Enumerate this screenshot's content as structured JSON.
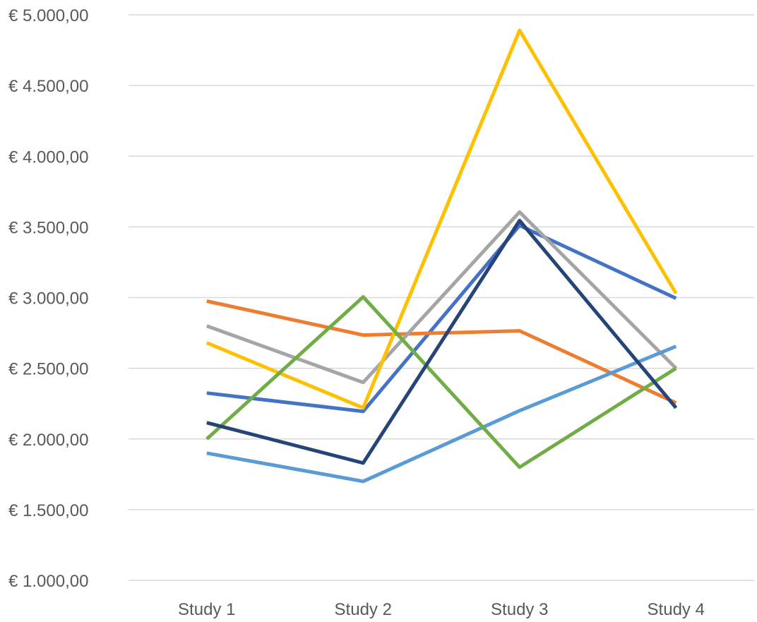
{
  "chart_data": {
    "type": "line",
    "title": "",
    "xlabel": "",
    "ylabel": "",
    "categories": [
      "Study 1",
      "Study 2",
      "Study 3",
      "Study 4"
    ],
    "ylim": [
      1000,
      5000
    ],
    "y_ticks": [
      1000,
      1500,
      2000,
      2500,
      3000,
      3500,
      4000,
      4500,
      5000
    ],
    "y_tick_labels": [
      "€ 1.000,00",
      "€ 1.500,00",
      "€ 2.000,00",
      "€ 2.500,00",
      "€ 3.000,00",
      "€ 3.500,00",
      "€ 4.000,00",
      "€ 4.500,00",
      "€ 5.000,00"
    ],
    "grid": true,
    "legend": "none",
    "series": [
      {
        "color": "#4472C4",
        "values": [
          2325,
          2195,
          3510,
          2995
        ]
      },
      {
        "color": "#ED7D31",
        "values": [
          2975,
          2735,
          2765,
          2255
        ]
      },
      {
        "color": "#A5A5A5",
        "values": [
          2800,
          2400,
          3605,
          2500
        ]
      },
      {
        "color": "#FFC000",
        "values": [
          2680,
          2220,
          4890,
          3030
        ]
      },
      {
        "color": "#5B9BD5",
        "values": [
          1900,
          1700,
          2200,
          2655
        ]
      },
      {
        "color": "#70AD47",
        "values": [
          2000,
          3005,
          1800,
          2500
        ]
      },
      {
        "color": "#264478",
        "values": [
          2115,
          1830,
          3545,
          2220
        ]
      }
    ]
  }
}
